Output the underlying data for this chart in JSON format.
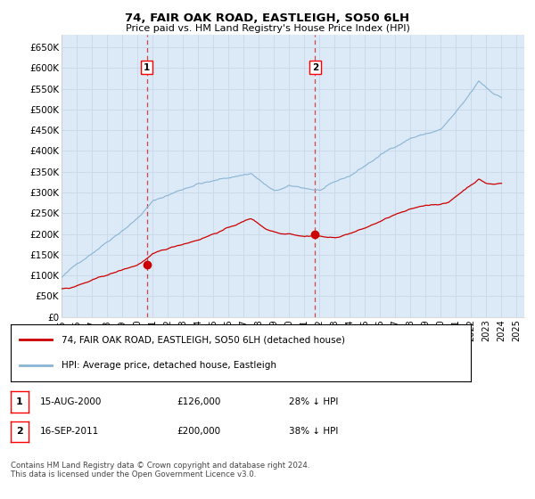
{
  "title": "74, FAIR OAK ROAD, EASTLEIGH, SO50 6LH",
  "subtitle": "Price paid vs. HM Land Registry's House Price Index (HPI)",
  "background_color": "#ffffff",
  "plot_bg_color": "#dce9f7",
  "grid_color": "#c8d8e8",
  "ylim": [
    0,
    680000
  ],
  "yticks": [
    0,
    50000,
    100000,
    150000,
    200000,
    250000,
    300000,
    350000,
    400000,
    450000,
    500000,
    550000,
    600000,
    650000
  ],
  "ytick_labels": [
    "£0",
    "£50K",
    "£100K",
    "£150K",
    "£200K",
    "£250K",
    "£300K",
    "£350K",
    "£400K",
    "£450K",
    "£500K",
    "£550K",
    "£600K",
    "£650K"
  ],
  "xlabel_years": [
    1995,
    1996,
    1997,
    1998,
    1999,
    2000,
    2001,
    2002,
    2003,
    2004,
    2005,
    2006,
    2007,
    2008,
    2009,
    2010,
    2011,
    2012,
    2013,
    2014,
    2015,
    2016,
    2017,
    2018,
    2019,
    2020,
    2021,
    2022,
    2023,
    2024,
    2025
  ],
  "hpi_color": "#8ab4d4",
  "price_color": "#cc0000",
  "transaction1_date": 2000.62,
  "transaction1_price": 126000,
  "transaction2_date": 2011.71,
  "transaction2_price": 200000,
  "legend_line1": "74, FAIR OAK ROAD, EASTLEIGH, SO50 6LH (detached house)",
  "legend_line2": "HPI: Average price, detached house, Eastleigh",
  "note1_label": "1",
  "note1_date": "15-AUG-2000",
  "note1_price": "£126,000",
  "note1_hpi": "28% ↓ HPI",
  "note2_label": "2",
  "note2_date": "16-SEP-2011",
  "note2_price": "£200,000",
  "note2_hpi": "38% ↓ HPI",
  "footer": "Contains HM Land Registry data © Crown copyright and database right 2024.\nThis data is licensed under the Open Government Licence v3.0."
}
